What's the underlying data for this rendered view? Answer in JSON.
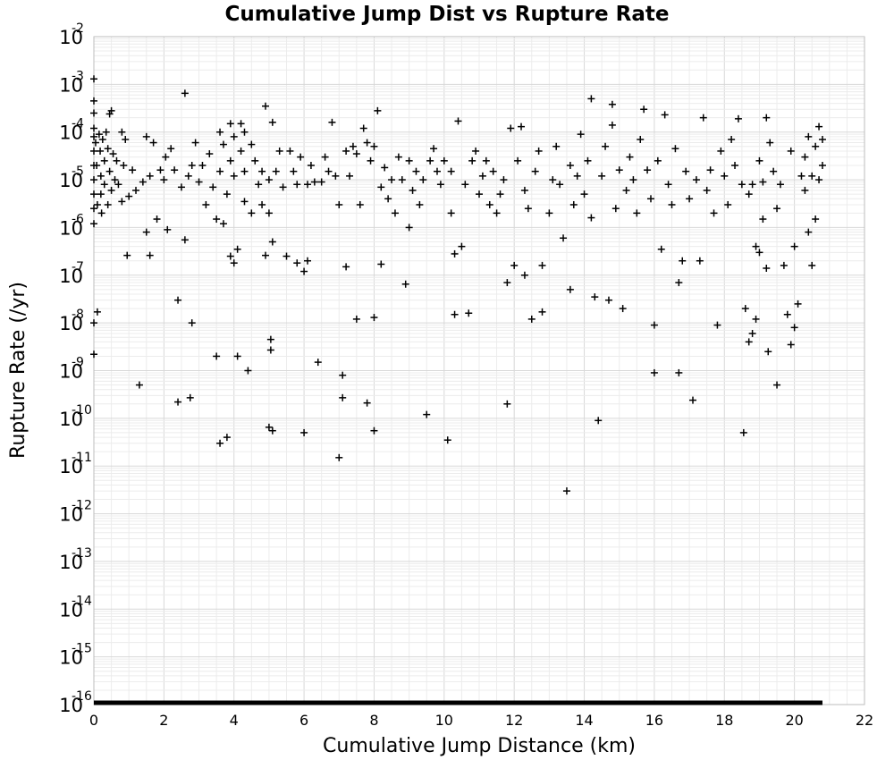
{
  "chart_data": {
    "type": "scatter",
    "title": "Cumulative Jump Dist vs Rupture Rate",
    "xlabel": "Cumulative Jump Distance (km)",
    "ylabel": "Rupture Rate (/yr)",
    "xlim": [
      0,
      22
    ],
    "ylim": [
      1e-16,
      0.01
    ],
    "yscale": "log",
    "grid": true,
    "marker": "+",
    "x_ticks": [
      "0",
      "2",
      "4",
      "6",
      "8",
      "10",
      "12",
      "14",
      "16",
      "18",
      "20",
      "22"
    ],
    "y_ticks": [
      {
        "base": "10",
        "exp": "-2"
      },
      {
        "base": "10",
        "exp": "-3"
      },
      {
        "base": "10",
        "exp": "-4"
      },
      {
        "base": "10",
        "exp": "-5"
      },
      {
        "base": "10",
        "exp": "-6"
      },
      {
        "base": "10",
        "exp": "-7"
      },
      {
        "base": "10",
        "exp": "-8"
      },
      {
        "base": "10",
        "exp": "-9"
      },
      {
        "base": "10",
        "exp": "-10"
      },
      {
        "base": "10",
        "exp": "-11"
      },
      {
        "base": "10",
        "exp": "-12"
      },
      {
        "base": "10",
        "exp": "-13"
      },
      {
        "base": "10",
        "exp": "-14"
      },
      {
        "base": "10",
        "exp": "-15"
      },
      {
        "base": "10",
        "exp": "-16"
      }
    ],
    "floor_band": {
      "y": 1e-16,
      "x_from": 0,
      "x_to": 20.8
    },
    "points": [
      [
        0.0,
        0.0013
      ],
      [
        0.0,
        0.00045
      ],
      [
        0.0,
        0.00025
      ],
      [
        0.0,
        0.00012
      ],
      [
        0.0,
        8e-05
      ],
      [
        0.0,
        4e-05
      ],
      [
        0.0,
        2e-05
      ],
      [
        0.0,
        1e-05
      ],
      [
        0.0,
        5e-06
      ],
      [
        0.0,
        2.5e-06
      ],
      [
        0.0,
        1.2e-06
      ],
      [
        0.0,
        1e-08
      ],
      [
        0.0,
        2.2e-09
      ],
      [
        0.05,
        6e-05
      ],
      [
        0.08,
        2e-05
      ],
      [
        0.1,
        1.7e-08
      ],
      [
        0.1,
        3e-06
      ],
      [
        0.15,
        9e-05
      ],
      [
        0.18,
        4e-05
      ],
      [
        0.2,
        1.2e-05
      ],
      [
        0.2,
        5e-06
      ],
      [
        0.22,
        2e-06
      ],
      [
        0.25,
        7e-05
      ],
      [
        0.3,
        2.5e-05
      ],
      [
        0.3,
        8e-06
      ],
      [
        0.35,
        0.0001
      ],
      [
        0.4,
        4.5e-05
      ],
      [
        0.4,
        3e-06
      ],
      [
        0.45,
        0.00024
      ],
      [
        0.45,
        1.5e-05
      ],
      [
        0.5,
        0.00028
      ],
      [
        0.5,
        6e-06
      ],
      [
        0.55,
        3.5e-05
      ],
      [
        0.6,
        1e-05
      ],
      [
        0.65,
        2.5e-05
      ],
      [
        0.7,
        8e-06
      ],
      [
        0.8,
        3.5e-06
      ],
      [
        0.8,
        0.0001
      ],
      [
        0.85,
        2e-05
      ],
      [
        0.9,
        7e-05
      ],
      [
        0.95,
        2.6e-07
      ],
      [
        1.0,
        4.5e-06
      ],
      [
        1.1,
        1.6e-05
      ],
      [
        1.2,
        6e-06
      ],
      [
        1.3,
        5e-10
      ],
      [
        1.4,
        9e-06
      ],
      [
        1.5,
        8e-07
      ],
      [
        1.5,
        8e-05
      ],
      [
        1.6,
        1.2e-05
      ],
      [
        1.6,
        2.6e-07
      ],
      [
        1.7,
        6e-05
      ],
      [
        1.8,
        1.5e-06
      ],
      [
        1.9,
        1.6e-05
      ],
      [
        2.0,
        1e-05
      ],
      [
        2.05,
        3e-05
      ],
      [
        2.1,
        9e-07
      ],
      [
        2.2,
        4.5e-05
      ],
      [
        2.3,
        1.6e-05
      ],
      [
        2.4,
        3e-08
      ],
      [
        2.4,
        2.2e-10
      ],
      [
        2.5,
        7e-06
      ],
      [
        2.6,
        0.00065
      ],
      [
        2.6,
        5.5e-07
      ],
      [
        2.7,
        1.2e-05
      ],
      [
        2.75,
        2.7e-10
      ],
      [
        2.8,
        2e-05
      ],
      [
        2.8,
        1e-08
      ],
      [
        2.9,
        6e-05
      ],
      [
        3.0,
        9e-06
      ],
      [
        3.1,
        2e-05
      ],
      [
        3.2,
        3e-06
      ],
      [
        3.3,
        3.5e-05
      ],
      [
        3.4,
        7e-06
      ],
      [
        3.5,
        2e-09
      ],
      [
        3.5,
        1.5e-06
      ],
      [
        3.6,
        0.0001
      ],
      [
        3.6,
        1.5e-05
      ],
      [
        3.6,
        3e-11
      ],
      [
        3.7,
        5.5e-05
      ],
      [
        3.7,
        1.2e-06
      ],
      [
        3.8,
        5e-06
      ],
      [
        3.8,
        4e-11
      ],
      [
        3.9,
        0.00015
      ],
      [
        3.9,
        2.5e-05
      ],
      [
        3.9,
        2.5e-07
      ],
      [
        4.0,
        1.8e-07
      ],
      [
        4.0,
        8e-05
      ],
      [
        4.0,
        1.2e-05
      ],
      [
        4.1,
        2e-09
      ],
      [
        4.1,
        3.5e-07
      ],
      [
        4.2,
        4e-05
      ],
      [
        4.2,
        0.00015
      ],
      [
        4.3,
        0.0001
      ],
      [
        4.3,
        1.5e-05
      ],
      [
        4.3,
        3.5e-06
      ],
      [
        4.4,
        1e-09
      ],
      [
        4.5,
        5.5e-05
      ],
      [
        4.5,
        2e-06
      ],
      [
        4.6,
        2.5e-05
      ],
      [
        4.7,
        8e-06
      ],
      [
        4.8,
        1.5e-05
      ],
      [
        4.8,
        3e-06
      ],
      [
        4.9,
        0.00035
      ],
      [
        4.9,
        2.6e-07
      ],
      [
        5.0,
        6.5e-11
      ],
      [
        5.0,
        1e-05
      ],
      [
        5.0,
        2e-06
      ],
      [
        5.05,
        4.5e-09
      ],
      [
        5.05,
        2.7e-09
      ],
      [
        5.1,
        5.5e-11
      ],
      [
        5.1,
        0.00016
      ],
      [
        5.1,
        5e-07
      ],
      [
        5.2,
        1.5e-05
      ],
      [
        5.3,
        4e-05
      ],
      [
        5.4,
        7e-06
      ],
      [
        5.5,
        2.5e-07
      ],
      [
        5.6,
        4e-05
      ],
      [
        5.7,
        1.5e-05
      ],
      [
        5.8,
        8e-06
      ],
      [
        5.8,
        1.8e-07
      ],
      [
        5.9,
        3e-05
      ],
      [
        6.0,
        1.2e-07
      ],
      [
        6.0,
        5e-11
      ],
      [
        6.1,
        2e-07
      ],
      [
        6.1,
        8e-06
      ],
      [
        6.2,
        2e-05
      ],
      [
        6.3,
        9e-06
      ],
      [
        6.4,
        1.5e-09
      ],
      [
        6.5,
        9e-06
      ],
      [
        6.6,
        3e-05
      ],
      [
        6.7,
        1.5e-05
      ],
      [
        6.8,
        0.00016
      ],
      [
        6.9,
        1.2e-05
      ],
      [
        7.0,
        1.5e-11
      ],
      [
        7.0,
        3e-06
      ],
      [
        7.1,
        2.7e-10
      ],
      [
        7.1,
        8e-10
      ],
      [
        7.2,
        1.5e-07
      ],
      [
        7.2,
        4e-05
      ],
      [
        7.3,
        1.2e-05
      ],
      [
        7.4,
        5e-05
      ],
      [
        7.5,
        3.5e-05
      ],
      [
        7.5,
        1.2e-08
      ],
      [
        7.6,
        3e-06
      ],
      [
        7.7,
        0.00012
      ],
      [
        7.8,
        6e-05
      ],
      [
        7.8,
        2.1e-10
      ],
      [
        7.9,
        2.5e-05
      ],
      [
        8.0,
        1.3e-08
      ],
      [
        8.0,
        5.5e-11
      ],
      [
        8.0,
        5e-05
      ],
      [
        8.1,
        0.00028
      ],
      [
        8.2,
        7e-06
      ],
      [
        8.2,
        1.7e-07
      ],
      [
        8.3,
        1.8e-05
      ],
      [
        8.4,
        4e-06
      ],
      [
        8.5,
        1e-05
      ],
      [
        8.6,
        2e-06
      ],
      [
        8.7,
        3e-05
      ],
      [
        8.8,
        1e-05
      ],
      [
        8.9,
        6.5e-08
      ],
      [
        9.0,
        2.5e-05
      ],
      [
        9.0,
        1e-06
      ],
      [
        9.1,
        6e-06
      ],
      [
        9.2,
        1.5e-05
      ],
      [
        9.3,
        3e-06
      ],
      [
        9.4,
        1e-05
      ],
      [
        9.5,
        1.2e-10
      ],
      [
        9.6,
        2.5e-05
      ],
      [
        9.7,
        4.5e-05
      ],
      [
        9.8,
        1.5e-05
      ],
      [
        9.9,
        8e-06
      ],
      [
        10.0,
        2.5e-05
      ],
      [
        10.1,
        3.5e-11
      ],
      [
        10.2,
        1.5e-05
      ],
      [
        10.2,
        2e-06
      ],
      [
        10.3,
        1.5e-08
      ],
      [
        10.3,
        2.8e-07
      ],
      [
        10.4,
        0.00017
      ],
      [
        10.5,
        4e-07
      ],
      [
        10.6,
        8e-06
      ],
      [
        10.7,
        1.6e-08
      ],
      [
        10.8,
        2.5e-05
      ],
      [
        10.9,
        4e-05
      ],
      [
        11.0,
        5e-06
      ],
      [
        11.1,
        1.2e-05
      ],
      [
        11.2,
        2.5e-05
      ],
      [
        11.3,
        3e-06
      ],
      [
        11.4,
        1.5e-05
      ],
      [
        11.5,
        2e-06
      ],
      [
        11.6,
        5e-06
      ],
      [
        11.7,
        1e-05
      ],
      [
        11.8,
        2e-10
      ],
      [
        11.8,
        7e-08
      ],
      [
        11.9,
        0.00012
      ],
      [
        12.0,
        1.6e-07
      ],
      [
        12.1,
        2.5e-05
      ],
      [
        12.2,
        0.00013
      ],
      [
        12.3,
        6e-06
      ],
      [
        12.3,
        1e-07
      ],
      [
        12.4,
        2.5e-06
      ],
      [
        12.5,
        1.2e-08
      ],
      [
        12.6,
        1.5e-05
      ],
      [
        12.7,
        4e-05
      ],
      [
        12.8,
        1.7e-08
      ],
      [
        12.8,
        1.6e-07
      ],
      [
        13.0,
        2e-06
      ],
      [
        13.1,
        1e-05
      ],
      [
        13.2,
        5e-05
      ],
      [
        13.3,
        8e-06
      ],
      [
        13.4,
        6e-07
      ],
      [
        13.5,
        3e-12
      ],
      [
        13.6,
        2e-05
      ],
      [
        13.6,
        5e-08
      ],
      [
        13.7,
        3e-06
      ],
      [
        13.8,
        1.2e-05
      ],
      [
        13.9,
        9e-05
      ],
      [
        14.0,
        5e-06
      ],
      [
        14.1,
        2.5e-05
      ],
      [
        14.2,
        0.0005
      ],
      [
        14.2,
        1.6e-06
      ],
      [
        14.3,
        3.5e-08
      ],
      [
        14.4,
        9e-11
      ],
      [
        14.5,
        1.2e-05
      ],
      [
        14.6,
        5e-05
      ],
      [
        14.7,
        3e-08
      ],
      [
        14.8,
        0.00038
      ],
      [
        14.8,
        0.00014
      ],
      [
        14.9,
        2.5e-06
      ],
      [
        15.0,
        1.6e-05
      ],
      [
        15.1,
        2e-08
      ],
      [
        15.2,
        6e-06
      ],
      [
        15.3,
        3e-05
      ],
      [
        15.4,
        1e-05
      ],
      [
        15.5,
        2e-06
      ],
      [
        15.6,
        7e-05
      ],
      [
        15.7,
        0.0003
      ],
      [
        15.8,
        1.6e-05
      ],
      [
        15.9,
        4e-06
      ],
      [
        16.0,
        9e-10
      ],
      [
        16.0,
        9e-09
      ],
      [
        16.1,
        2.5e-05
      ],
      [
        16.2,
        3.5e-07
      ],
      [
        16.3,
        0.00023
      ],
      [
        16.4,
        8e-06
      ],
      [
        16.5,
        3e-06
      ],
      [
        16.6,
        4.5e-05
      ],
      [
        16.7,
        7e-08
      ],
      [
        16.7,
        9e-10
      ],
      [
        16.8,
        2e-07
      ],
      [
        16.9,
        1.5e-05
      ],
      [
        17.0,
        4e-06
      ],
      [
        17.1,
        2.4e-10
      ],
      [
        17.2,
        1e-05
      ],
      [
        17.3,
        2e-07
      ],
      [
        17.4,
        0.0002
      ],
      [
        17.5,
        6e-06
      ],
      [
        17.6,
        1.6e-05
      ],
      [
        17.7,
        2e-06
      ],
      [
        17.8,
        9e-09
      ],
      [
        17.9,
        4e-05
      ],
      [
        18.0,
        1.2e-05
      ],
      [
        18.1,
        3e-06
      ],
      [
        18.2,
        7e-05
      ],
      [
        18.3,
        2e-05
      ],
      [
        18.4,
        0.00019
      ],
      [
        18.5,
        8e-06
      ],
      [
        18.55,
        5e-11
      ],
      [
        18.6,
        2e-08
      ],
      [
        18.7,
        5e-06
      ],
      [
        18.7,
        4e-09
      ],
      [
        18.8,
        8e-06
      ],
      [
        18.8,
        6e-09
      ],
      [
        18.9,
        1.2e-08
      ],
      [
        18.9,
        4e-07
      ],
      [
        19.0,
        2.5e-05
      ],
      [
        19.0,
        3e-07
      ],
      [
        19.1,
        9e-06
      ],
      [
        19.1,
        1.5e-06
      ],
      [
        19.2,
        0.0002
      ],
      [
        19.2,
        1.4e-07
      ],
      [
        19.25,
        2.5e-09
      ],
      [
        19.3,
        6e-05
      ],
      [
        19.4,
        1.5e-05
      ],
      [
        19.5,
        5e-10
      ],
      [
        19.5,
        2.5e-06
      ],
      [
        19.6,
        8e-06
      ],
      [
        19.7,
        1.6e-07
      ],
      [
        19.8,
        1.5e-08
      ],
      [
        19.9,
        3.5e-09
      ],
      [
        19.9,
        4e-05
      ],
      [
        20.0,
        8e-09
      ],
      [
        20.0,
        4e-07
      ],
      [
        20.1,
        2.5e-08
      ],
      [
        20.2,
        1.2e-05
      ],
      [
        20.3,
        6e-06
      ],
      [
        20.3,
        3e-05
      ],
      [
        20.4,
        8e-07
      ],
      [
        20.4,
        8e-05
      ],
      [
        20.5,
        1.6e-07
      ],
      [
        20.5,
        1.2e-05
      ],
      [
        20.6,
        1.5e-06
      ],
      [
        20.6,
        5e-05
      ],
      [
        20.7,
        0.00013
      ],
      [
        20.7,
        1e-05
      ],
      [
        20.8,
        7e-05
      ],
      [
        20.8,
        2e-05
      ]
    ]
  }
}
